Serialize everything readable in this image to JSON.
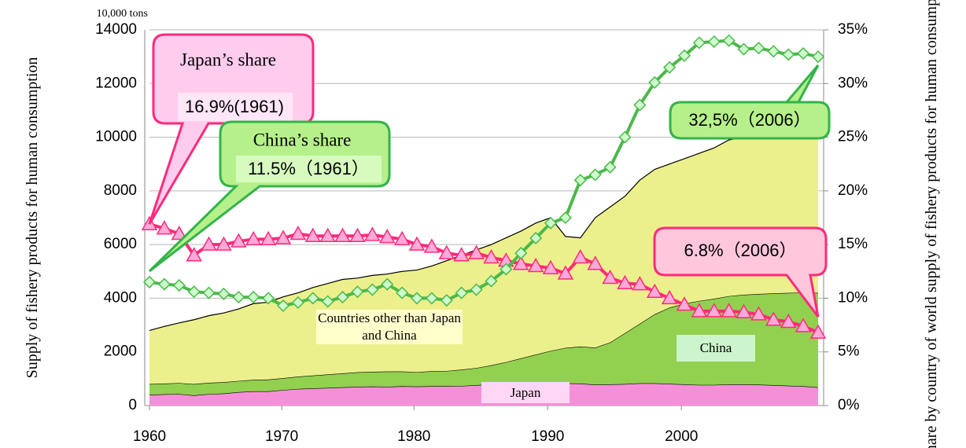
{
  "chart_data": {
    "type": "combo",
    "unit_label": "10,000 tons",
    "y_label": "Supply of fishery products for human consumption",
    "y2_label": "Share by country of world supply of fishery products for human consumption",
    "x": [
      1961,
      1962,
      1963,
      1964,
      1965,
      1966,
      1967,
      1968,
      1969,
      1970,
      1971,
      1972,
      1973,
      1974,
      1975,
      1976,
      1977,
      1978,
      1979,
      1980,
      1981,
      1982,
      1983,
      1984,
      1985,
      1986,
      1987,
      1988,
      1989,
      1990,
      1991,
      1992,
      1993,
      1994,
      1995,
      1996,
      1997,
      1998,
      1999,
      2000,
      2001,
      2002,
      2003,
      2004,
      2005,
      2006
    ],
    "xlim": [
      1961,
      2006
    ],
    "xticks": [
      {
        "value": 1961,
        "label": "1960"
      },
      {
        "value": 1969.9,
        "label": "1970"
      },
      {
        "value": 1978.8,
        "label": "1980"
      },
      {
        "value": 1987.8,
        "label": "1990"
      },
      {
        "value": 1996.8,
        "label": "2000"
      }
    ],
    "ylim": [
      0,
      14000
    ],
    "yticks": [
      0,
      2000,
      4000,
      6000,
      8000,
      10000,
      12000,
      14000
    ],
    "y2lim": [
      0,
      35
    ],
    "y2ticks": [
      {
        "value": 0,
        "label": "0%"
      },
      {
        "value": 5,
        "label": "5%"
      },
      {
        "value": 10,
        "label": "10%"
      },
      {
        "value": 15,
        "label": "15%"
      },
      {
        "value": 20,
        "label": "20%"
      },
      {
        "value": 25,
        "label": "25%"
      },
      {
        "value": 30,
        "label": "30%"
      },
      {
        "value": 35,
        "label": "35%"
      }
    ],
    "grid": true,
    "series": [
      {
        "name": "Japan",
        "type": "area",
        "color": "#f590d8",
        "values": [
          400,
          420,
          430,
          380,
          430,
          450,
          500,
          530,
          530,
          580,
          620,
          640,
          660,
          680,
          700,
          710,
          700,
          720,
          710,
          720,
          720,
          730,
          760,
          790,
          800,
          810,
          820,
          830,
          830,
          820,
          780,
          790,
          800,
          830,
          830,
          810,
          790,
          770,
          770,
          790,
          790,
          780,
          760,
          740,
          720,
          680
        ]
      },
      {
        "name": "China",
        "type": "area",
        "color": "#92d050",
        "values": [
          400,
          400,
          410,
          420,
          420,
          420,
          420,
          430,
          440,
          440,
          460,
          480,
          500,
          520,
          540,
          550,
          570,
          550,
          540,
          560,
          570,
          610,
          640,
          710,
          820,
          950,
          1080,
          1210,
          1320,
          1380,
          1380,
          1560,
          1900,
          2220,
          2570,
          2840,
          3010,
          3130,
          3210,
          3290,
          3340,
          3380,
          3420,
          3460,
          3490,
          3520
        ]
      },
      {
        "name": "Countries other than Japan and China",
        "type": "area",
        "color": "#ecf08c",
        "values": [
          2000,
          2130,
          2240,
          2400,
          2500,
          2580,
          2680,
          2840,
          2880,
          3030,
          3120,
          3280,
          3390,
          3500,
          3510,
          3590,
          3630,
          3730,
          3800,
          3920,
          4110,
          4260,
          4400,
          4500,
          4630,
          4740,
          4900,
          4960,
          4150,
          4050,
          4840,
          5050,
          5100,
          5350,
          5400,
          5350,
          5400,
          5500,
          5620,
          5820,
          5870,
          6040,
          6170,
          6300,
          6390,
          6500
        ]
      },
      {
        "name": "Japan’s share",
        "type": "line",
        "axis": "y2",
        "color": "#ff2a7a",
        "marker_fill": "#ffaad8",
        "marker": "triangle",
        "values": [
          16.9,
          16.5,
          16.0,
          14.0,
          15.0,
          15.0,
          15.3,
          15.5,
          15.5,
          15.6,
          16.0,
          15.8,
          15.8,
          15.8,
          15.8,
          15.9,
          15.7,
          15.5,
          15.0,
          14.8,
          14.2,
          14.0,
          14.2,
          13.8,
          13.5,
          13.2,
          13.0,
          12.8,
          12.3,
          13.8,
          13.2,
          11.9,
          11.4,
          11.3,
          10.6,
          10.0,
          9.4,
          8.8,
          8.8,
          8.8,
          8.7,
          8.5,
          8.0,
          7.8,
          7.4,
          6.8
        ]
      },
      {
        "name": "China’s share",
        "type": "line",
        "axis": "y2",
        "color": "#4cb84a",
        "marker_fill": "#ccffcc",
        "marker": "diamond",
        "values": [
          11.5,
          11.3,
          11.2,
          10.6,
          10.5,
          10.4,
          10.1,
          10.1,
          10.0,
          9.3,
          9.6,
          10.0,
          9.7,
          10.1,
          10.6,
          10.8,
          11.3,
          10.5,
          10.0,
          10.0,
          9.8,
          10.5,
          10.8,
          11.6,
          12.7,
          14.2,
          15.6,
          17.0,
          17.5,
          21.0,
          21.5,
          22.2,
          25.0,
          28.0,
          30.1,
          31.5,
          32.6,
          33.8,
          33.9,
          34.0,
          33.2,
          33.3,
          33.0,
          32.7,
          32.8,
          32.5
        ]
      }
    ],
    "annotations": [
      "16.9%(1961)",
      "11.5%（1961）",
      "32,5%（2006）",
      "6.8%（2006）"
    ]
  }
}
